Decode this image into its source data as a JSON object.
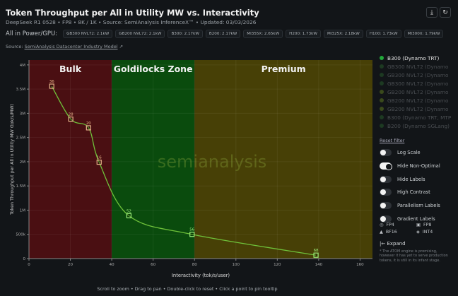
{
  "header": {
    "title": "Token Throughput per All in Utility MW vs. Interactivity",
    "subtitle": "DeepSeek R1 0528 • FP8 • 8K / 1K • Source: SemiAnalysis InferenceX™ • Updated: 03/03/2026",
    "power_label": "All in Power/GPU:",
    "power_chips": [
      "GB300 NVL72: 2.1kW",
      "GB200 NVL72: 2.1kW",
      "B300: 2.17kW",
      "B200: 2.17kW",
      "MI355X: 2.65kW",
      "H200: 1.73kW",
      "MI325X: 2.18kW",
      "H100: 1.73kW",
      "MI300X: 1.79kW"
    ],
    "source_prefix": "Source: ",
    "source_link": "SemiAnalysis Datacenter Industry Model",
    "download_icon": "download-icon",
    "reset_icon": "reset-icon"
  },
  "legend": {
    "items": [
      {
        "label": "B300 (Dynamo TRT)",
        "color": "#22a83a",
        "active": true
      },
      {
        "label": "GB300 NVL72 (Dynamo",
        "color": "#1d3a22",
        "active": false
      },
      {
        "label": "GB300 NVL72 (Dynamo",
        "color": "#1d3a22",
        "active": false
      },
      {
        "label": "GB300 NVL72 (Dynamo",
        "color": "#1d3a22",
        "active": false
      },
      {
        "label": "GB200 NVL72 (Dynamo",
        "color": "#3a4a1c",
        "active": false
      },
      {
        "label": "GB200 NVL72 (Dynamo",
        "color": "#3a4a1c",
        "active": false
      },
      {
        "label": "GB200 NVL72 (Dynamo",
        "color": "#3a4a1c",
        "active": false
      },
      {
        "label": "B300 (Dynamo TRT, MTP",
        "color": "#1d3a22",
        "active": false
      },
      {
        "label": "B200 (Dynamo SGLang)",
        "color": "#1d3a22",
        "active": false
      }
    ],
    "reset_filter": "Reset filter"
  },
  "toggles": [
    {
      "label": "Log Scale",
      "on": false
    },
    {
      "label": "Hide Non-Optimal",
      "on": true
    },
    {
      "label": "Hide Labels",
      "on": false
    },
    {
      "label": "High Contrast",
      "on": false
    },
    {
      "label": "Parallelism Labels",
      "on": false
    },
    {
      "label": "Gradient Labels",
      "on": false
    }
  ],
  "precision": [
    {
      "label": "FP4",
      "icon": "circle-icon",
      "glyph": "◎"
    },
    {
      "label": "FP8",
      "icon": "square-icon",
      "glyph": "▣"
    },
    {
      "label": "BF16",
      "icon": "triangle-icon",
      "glyph": "▲"
    },
    {
      "label": "INT4",
      "icon": "diamond-icon",
      "glyph": "◈"
    }
  ],
  "expand_label": "|← Expand",
  "note": "* The ATOM engine is promising, however it has yet to serve production tokens, it is still in its infant stage.",
  "footer": "Scroll to zoom • Drag to pan • Double-click to reset • Click a point to pin tooltip",
  "chart_data": {
    "type": "line",
    "xlabel": "Interactivity (tok/s/user)",
    "ylabel": "Token Throughput per All in Utility MW (tok/s/MW)",
    "xlim": [
      0,
      166
    ],
    "ylim": [
      0,
      4100000
    ],
    "xticks": [
      0,
      20,
      40,
      60,
      80,
      100,
      120,
      140,
      160
    ],
    "yticks": [
      {
        "v": 0,
        "l": "0"
      },
      {
        "v": 500000,
        "l": "500k"
      },
      {
        "v": 1000000,
        "l": "1M"
      },
      {
        "v": 1500000,
        "l": "1.5M"
      },
      {
        "v": 2000000,
        "l": "2M"
      },
      {
        "v": 2500000,
        "l": "2.5M"
      },
      {
        "v": 3000000,
        "l": "3M"
      },
      {
        "v": 3500000,
        "l": "3.5M"
      },
      {
        "v": 4000000,
        "l": "4M"
      }
    ],
    "zones": [
      {
        "label": "Bulk",
        "from": 0,
        "to": 40,
        "color": "#4a0f12"
      },
      {
        "label": "Goldilocks Zone",
        "from": 40,
        "to": 80,
        "color": "#0a4b0d"
      },
      {
        "label": "Premium",
        "from": 80,
        "to": 166,
        "color": "#474006"
      }
    ],
    "series": [
      {
        "points": [
          {
            "x": 11,
            "y": 3560000,
            "label": "36"
          },
          {
            "x": 20.2,
            "y": 2880000,
            "label": "28"
          },
          {
            "x": 28.8,
            "y": 2700000,
            "label": "20"
          },
          {
            "x": 33.9,
            "y": 1990000,
            "label": "16"
          },
          {
            "x": 48.3,
            "y": 885000,
            "label": "52"
          },
          {
            "x": 78.8,
            "y": 500000,
            "label": "56"
          },
          {
            "x": 138.7,
            "y": 70000,
            "label": "68"
          }
        ]
      }
    ],
    "watermark": "semianalysis",
    "grid": true
  }
}
